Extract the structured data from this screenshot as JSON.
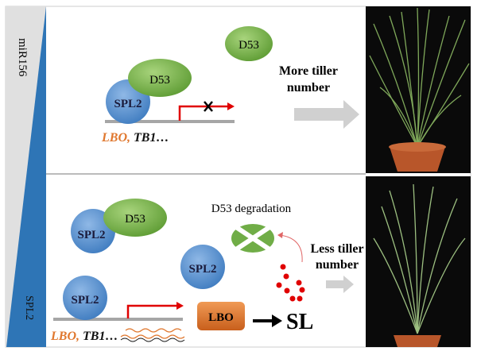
{
  "side": {
    "top": "miR156",
    "bottom": "SPL2"
  },
  "top": {
    "d53_free": "D53",
    "d53_bound": "D53",
    "spl2": "SPL2",
    "gene_lbo": "LBO,",
    "gene_tb1": " TB1…",
    "result": [
      "More tiller",
      "number"
    ]
  },
  "bottom": {
    "d53_bound": "D53",
    "spl2_a": "SPL2",
    "spl2_b": "SPL2",
    "spl2_c": "SPL2",
    "degradation": "D53 degradation",
    "gene_lbo": "LBO,",
    "gene_tb1": " TB1…",
    "lbo_box": "LBO",
    "sl": "SL",
    "result": [
      "Less tiller",
      "number"
    ]
  },
  "colors": {
    "blue": "#2e75b6",
    "green": "#70ad47",
    "orange": "#e0782f",
    "red": "#e00000",
    "grey": "#a6a6a6"
  }
}
